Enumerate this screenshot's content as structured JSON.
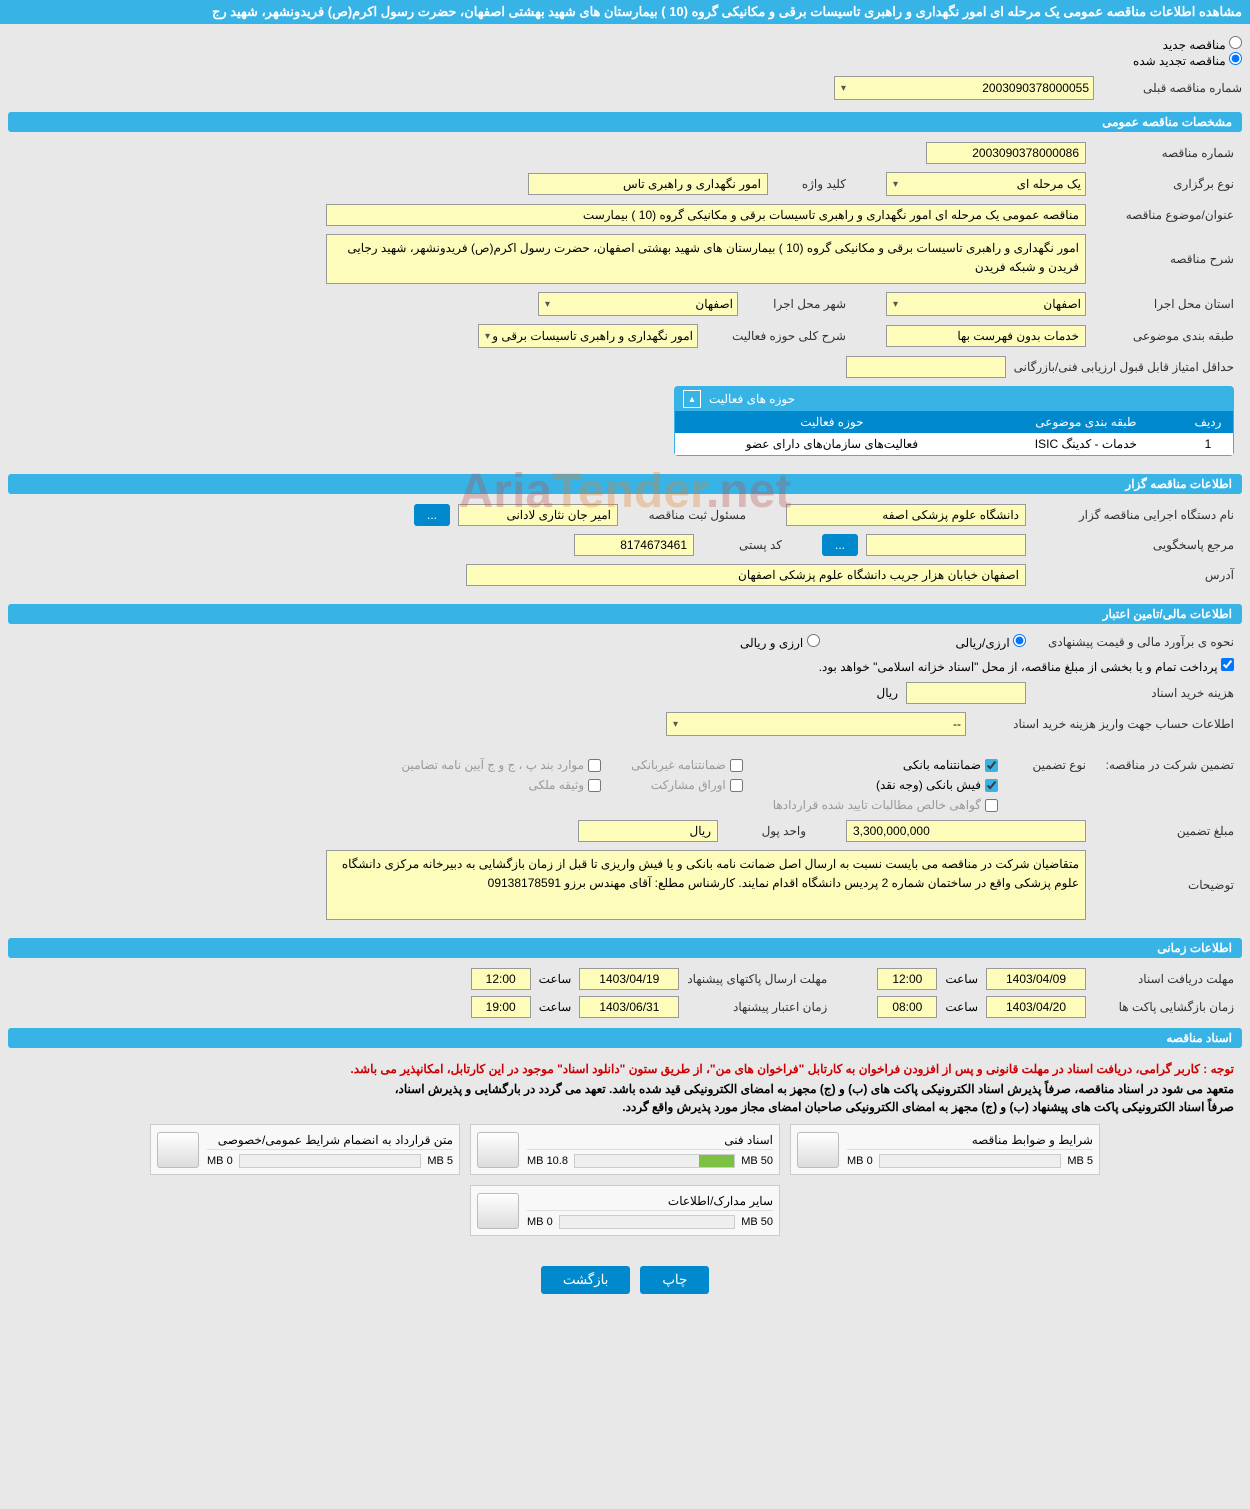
{
  "title": "مشاهده اطلاعات مناقصه عمومی یک مرحله ای امور نگهداری و راهبری تاسیسات برقی و مکانیکی گروه (10 ) بیمارستان های شهید بهشتی اصفهان، حضرت رسول اکرم(ص) فریدونشهر، شهید رج",
  "radio": {
    "new": "مناقصه جدید",
    "renewed": "مناقصه تجدید شده"
  },
  "prevLabel": "شماره مناقصه قبلی",
  "prevValue": "2003090378000055",
  "sections": {
    "general": "مشخصات مناقصه عمومی",
    "tenderer": "اطلاعات مناقصه گزار",
    "financial": "اطلاعات مالی/تامین اعتبار",
    "time": "اطلاعات زمانی",
    "docs": "اسناد مناقصه"
  },
  "labels": {
    "tenderNo": "شماره مناقصه",
    "holdType": "نوع برگزاری",
    "keyword": "کلید واژه",
    "subject": "عنوان/موضوع مناقصه",
    "desc": "شرح مناقصه",
    "province": "استان محل اجرا",
    "city": "شهر محل اجرا",
    "category": "طبقه بندی موضوعی",
    "field": "شرح کلی حوزه فعالیت",
    "minScore": "حداقل امتیاز قابل قبول ارزیابی فنی/بازرگانی",
    "activityBox": "حوزه های فعالیت",
    "row": "ردیف",
    "catCol": "طبقه بندی موضوعی",
    "fieldCol": "حوزه فعالیت",
    "execDevice": "نام دستگاه اجرایی مناقصه گزار",
    "regResp": "مسئول ثبت مناقصه",
    "respRef": "مرجع پاسخگویی",
    "postalCode": "کد پستی",
    "address": "آدرس",
    "estMethod": "نحوه ی برآورد مالی و قیمت پیشنهادی",
    "rialFx": "ارزی/ریالی",
    "fxRial": "ارزی و ریالی",
    "treasuryNote": "پرداخت تمام و یا بخشی از مبلغ مناقصه، از محل \"اسناد خزانه اسلامی\" خواهد بود.",
    "docCost": "هزینه خرید اسناد",
    "rial": "ریال",
    "accountInfo": "اطلاعات حساب جهت واریز هزینه خرید اسناد",
    "guaranteeType": "نوع تضمین",
    "guaranteeTitle": "تضمین شرکت در مناقصه:",
    "guaranteeAmt": "مبلغ تضمین",
    "currencyUnit": "واحد پول",
    "notes": "توضیحات",
    "docDeadline": "مهلت دریافت اسناد",
    "openTime": "زمان بازگشایی پاکت ها",
    "sendDeadline": "مهلت ارسال پاکتهای پیشنهاد",
    "validTime": "زمان اعتبار پیشنهاد",
    "hour": "ساعت"
  },
  "values": {
    "tenderNo": "2003090378000086",
    "holdType": "یک مرحله ای",
    "keyword": "امور نگهداری و راهبری تاس",
    "subject": "مناقصه عمومی یک مرحله ای امور نگهداری و راهبری تاسیسات برقی و مکانیکی گروه (10 ) بیمارست",
    "desc": "امور نگهداری و راهبری تاسیسات برقی و مکانیکی گروه (10 ) بیمارستان های شهید بهشتی اصفهان، حضرت رسول اکرم(ص) فریدونشهر، شهید رجایی فریدن و شبکه فریدن",
    "province": "اصفهان",
    "city": "اصفهان",
    "category": "خدمات بدون فهرست بها",
    "field": "امور نگهداری و راهبری تاسیسات برقی و مکانیکی",
    "rowNum": "1",
    "catVal": "خدمات - کدینگ ISIC",
    "fieldVal": "فعالیت‌های سازمان‌های دارای عضو",
    "execDevice": "دانشگاه علوم پزشکی اصفه",
    "regResp": "امیر جان نثاری لادانی",
    "postalCode": "8174673461",
    "address": "اصفهان خیابان هزار جریب دانشگاه علوم پزشکی اصفهان",
    "accountSel": "--",
    "guaranteeAmt": "3,300,000,000",
    "currencyUnit": "ریال",
    "notes": "متقاضیان شرکت در مناقصه می بایست نسبت به ارسال اصل ضمانت نامه بانکی و یا فیش واریزی تا قبل از زمان بازگشایی به دبیرخانه مرکزی دانشگاه علوم پزشکی واقع در ساختمان شماره 2 پردیس دانشگاه اقدام نمایند. کارشناس مطلع: آقای مهندس برزو 09138178591"
  },
  "guaranteeChecks": {
    "bankGuarantee": "ضمانتنامه بانکی",
    "nonBankGuarantee": "ضمانتنامه غیربانکی",
    "bylawItems": "موارد بند پ ، ج و ج آیین نامه تضامین",
    "bankSlip": "فیش بانکی (وجه نقد)",
    "participation": "اوراق مشارکت",
    "propertyDeed": "وثیقه ملکی",
    "netClaims": "گواهی خالص مطالبات تایید شده قراردادها"
  },
  "times": {
    "docDate": "1403/04/09",
    "docHour": "12:00",
    "openDate": "1403/04/20",
    "openHour": "08:00",
    "sendDate": "1403/04/19",
    "sendHour": "12:00",
    "validDate": "1403/06/31",
    "validHour": "19:00"
  },
  "docNotes": {
    "red": "توجه : کاربر گرامی، دریافت اسناد در مهلت قانونی و پس از افزودن فراخوان به کارتابل \"فراخوان های من\"، از طریق ستون \"دانلود اسناد\" موجود در این کارتابل، امکانپذیر می باشد.",
    "line1": "متعهد می شود در اسناد مناقصه، صرفاً پذیرش اسناد الکترونیکی پاکت های (ب) و (ج) مجهز به امضای الکترونیکی قید شده باشد. تعهد می گردد در بارگشایی و پذیرش اسناد،",
    "line2": "صرفاً اسناد الکترونیکی پاکت های پیشنهاد (ب) و (ج) مجهز به امضای الکترونیکی صاحبان امضای مجاز مورد پذیرش واقع گردد."
  },
  "docs": [
    {
      "title": "شرایط و ضوابط مناقصه",
      "used": "0 MB",
      "max": "5 MB",
      "pct": 0
    },
    {
      "title": "اسناد فنی",
      "used": "10.8 MB",
      "max": "50 MB",
      "pct": 22
    },
    {
      "title": "متن قرارداد به انضمام شرایط عمومی/خصوصی",
      "used": "0 MB",
      "max": "5 MB",
      "pct": 0
    },
    {
      "title": "سایر مدارک/اطلاعات",
      "used": "0 MB",
      "max": "50 MB",
      "pct": 0
    }
  ],
  "buttons": {
    "print": "چاپ",
    "back": "بازگشت"
  },
  "watermark": {
    "a": "Aria",
    "b": "Tender",
    "c": ".net"
  },
  "colors": {
    "headerBg": "#38b3e6",
    "tableHeaderBg": "#0089cc",
    "fieldBg": "#fdfcbb",
    "barFill": "#7cc142"
  }
}
